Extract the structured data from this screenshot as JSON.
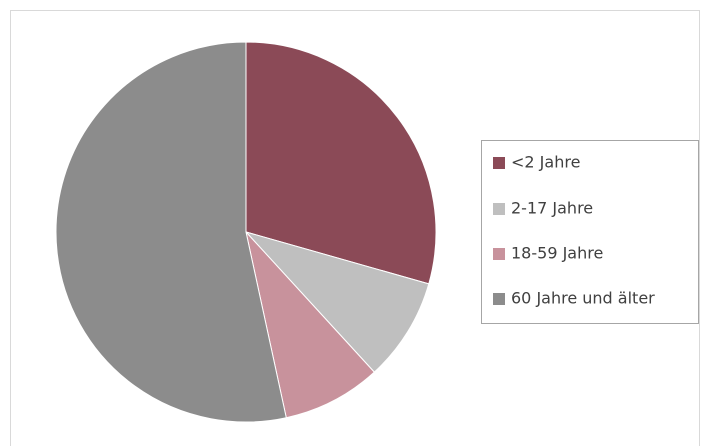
{
  "chart_data": {
    "type": "pie",
    "categories": [
      "<2 Jahre",
      "2-17 Jahre",
      "18-59 Jahre",
      "60 Jahre und älter"
    ],
    "values": [
      29.4,
      8.8,
      8.4,
      53.4
    ],
    "colors": [
      "#8b4a57",
      "#bfbfbf",
      "#c8929c",
      "#8c8c8c"
    ],
    "legend": "right"
  }
}
